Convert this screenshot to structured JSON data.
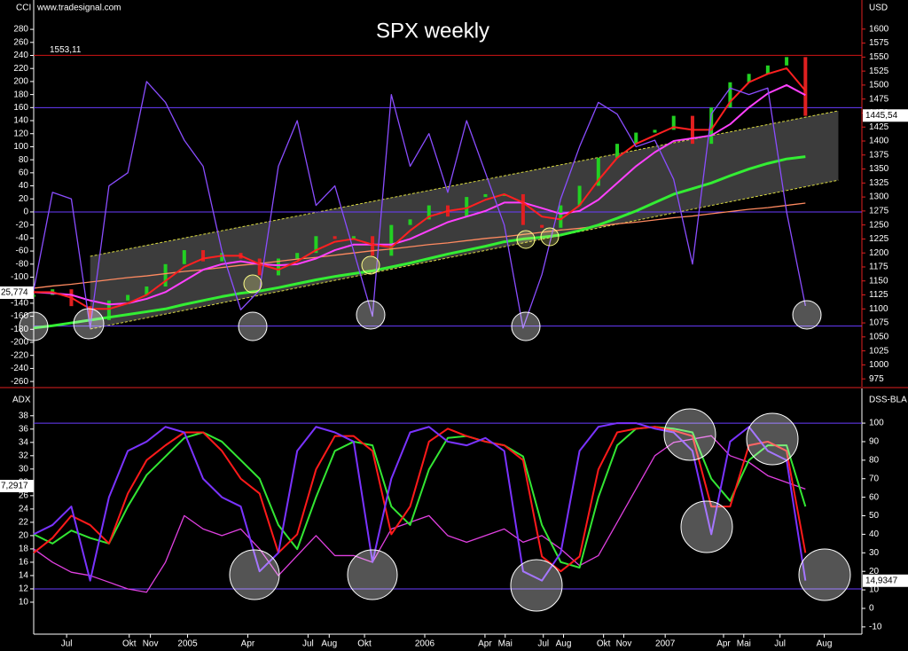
{
  "chart_data": [
    {
      "type": "line",
      "title": "SPX weekly",
      "source": "www.tradesignal.com",
      "y_label": "CCI",
      "y2_label": "USD",
      "x": [
        0,
        4,
        8,
        12,
        16,
        20,
        24,
        28,
        32,
        36,
        40,
        44,
        48,
        52,
        56,
        60,
        64,
        68,
        72,
        76,
        80,
        84,
        88,
        92,
        96,
        100,
        104,
        108,
        112,
        116,
        120,
        124,
        128,
        132,
        136,
        140,
        144,
        148,
        152,
        156,
        160,
        164
      ],
      "xlim": [
        0,
        176
      ],
      "ylim": [
        -268,
        325
      ],
      "yticks": [
        -260,
        -240,
        -220,
        -200,
        -180,
        -160,
        -140,
        -120,
        -100,
        -80,
        -60,
        -40,
        -20,
        0,
        20,
        40,
        60,
        80,
        100,
        120,
        140,
        160,
        180,
        200,
        220,
        240,
        260,
        280
      ],
      "y2lim": [
        961,
        1652
      ],
      "y2ticks": [
        975,
        1000,
        1025,
        1050,
        1075,
        1100,
        1125,
        1150,
        1175,
        1200,
        1225,
        1250,
        1275,
        1300,
        1325,
        1350,
        1375,
        1400,
        1425,
        1450,
        1475,
        1500,
        1525,
        1550,
        1575,
        1600
      ],
      "channel": {
        "x": [
          12,
          171
        ],
        "upper": [
          1194,
          1454
        ],
        "lower": [
          1064,
          1330
        ],
        "axis": "y2",
        "color": "#3c3c3c",
        "edge_color": "#d8d840"
      },
      "hlines": [
        {
          "value": 1553.11,
          "label": "1553,11",
          "axis": "y2",
          "color": "#d01414"
        },
        {
          "value": 160,
          "color": "#6a3cff"
        },
        {
          "value": 0,
          "color": "#6a3cff"
        },
        {
          "value": -175,
          "color": "#6a3cff"
        }
      ],
      "series": [
        {
          "style": "candle",
          "axis": "y2",
          "color": "#22d022",
          "down_color": "#e02020",
          "values": [
            1125,
            1135,
            1105,
            1080,
            1115,
            1125,
            1140,
            1180,
            1205,
            1185,
            1200,
            1190,
            1160,
            1190,
            1200,
            1230,
            1225,
            1230,
            1195,
            1250,
            1260,
            1285,
            1265,
            1300,
            1305,
            1305,
            1250,
            1245,
            1285,
            1320,
            1370,
            1395,
            1415,
            1420,
            1445,
            1395,
            1460,
            1505,
            1520,
            1535,
            1550,
            1445
          ]
        },
        {
          "axis": "y2",
          "color": "#ff8a60",
          "values": [
            1137,
            1141,
            1144,
            1148,
            1152,
            1156,
            1159,
            1163,
            1167,
            1170,
            1174,
            1178,
            1181,
            1185,
            1189,
            1192,
            1196,
            1200,
            1204,
            1207,
            1211,
            1215,
            1218,
            1222,
            1226,
            1229,
            1233,
            1237,
            1241,
            1244,
            1248,
            1252,
            1255,
            1259,
            1263,
            1266,
            1270,
            1274,
            1278,
            1281,
            1285,
            1289
          ]
        },
        {
          "axis": "y2",
          "color": "#33ee33",
          "width": 3,
          "values": [
            1066,
            1070,
            1075,
            1080,
            1085,
            1090,
            1095,
            1100,
            1108,
            1115,
            1122,
            1128,
            1132,
            1138,
            1145,
            1152,
            1158,
            1163,
            1168,
            1175,
            1182,
            1190,
            1198,
            1205,
            1212,
            1220,
            1225,
            1228,
            1232,
            1240,
            1250,
            1262,
            1275,
            1290,
            1305,
            1315,
            1325,
            1338,
            1350,
            1360,
            1368,
            1372
          ]
        },
        {
          "axis": "y2",
          "color": "#ff40ff",
          "width": 2,
          "values": [
            1130,
            1128,
            1125,
            1115,
            1108,
            1110,
            1118,
            1130,
            1150,
            1170,
            1180,
            1185,
            1180,
            1178,
            1180,
            1190,
            1205,
            1215,
            1215,
            1215,
            1225,
            1240,
            1255,
            1265,
            1275,
            1290,
            1290,
            1280,
            1270,
            1275,
            1295,
            1325,
            1355,
            1380,
            1400,
            1405,
            1410,
            1430,
            1460,
            1485,
            1500,
            1482
          ]
        },
        {
          "axis": "y2",
          "color": "#ff2020",
          "width": 2,
          "values": [
            1130,
            1130,
            1120,
            1100,
            1100,
            1110,
            1125,
            1150,
            1175,
            1190,
            1195,
            1195,
            1180,
            1170,
            1185,
            1205,
            1220,
            1225,
            1215,
            1210,
            1240,
            1265,
            1275,
            1280,
            1295,
            1305,
            1290,
            1265,
            1260,
            1285,
            1330,
            1370,
            1395,
            1410,
            1425,
            1420,
            1420,
            1470,
            1505,
            1520,
            1530,
            1490
          ]
        },
        {
          "color": "#8a4dff",
          "values": [
            -120,
            30,
            20,
            -178,
            40,
            60,
            200,
            168,
            110,
            70,
            -60,
            -150,
            -120,
            70,
            140,
            10,
            40,
            -60,
            -160,
            180,
            70,
            120,
            30,
            140,
            60,
            -20,
            -178,
            -96,
            20,
            100,
            168,
            150,
            100,
            110,
            50,
            -80,
            150,
            190,
            180,
            190,
            0,
            -144
          ]
        }
      ],
      "last_values": [
        {
          "value": 1445.54,
          "label": "1445,54",
          "axis": "y2"
        }
      ],
      "left_labels": [
        "25,774"
      ]
    },
    {
      "type": "line",
      "y_label": "ADX",
      "y2_label": "DSS-BLA",
      "x": [
        0,
        4,
        8,
        12,
        16,
        20,
        24,
        28,
        32,
        36,
        40,
        44,
        48,
        52,
        56,
        60,
        64,
        68,
        72,
        76,
        80,
        84,
        88,
        92,
        96,
        100,
        104,
        108,
        112,
        116,
        120,
        124,
        128,
        132,
        136,
        140,
        144,
        148,
        152,
        156,
        160,
        164
      ],
      "xlim": [
        0,
        176
      ],
      "xticks": [
        {
          "value": 7,
          "label": "Jul"
        },
        {
          "value": 20.3,
          "label": "Okt"
        },
        {
          "value": 24.8,
          "label": "Nov"
        },
        {
          "value": 32.7,
          "label": "2005"
        },
        {
          "value": 45.5,
          "label": "Apr"
        },
        {
          "value": 58.3,
          "label": "Jul"
        },
        {
          "value": 62.8,
          "label": "Aug"
        },
        {
          "value": 70.3,
          "label": "Okt"
        },
        {
          "value": 83.1,
          "label": "2006"
        },
        {
          "value": 95.9,
          "label": "Apr"
        },
        {
          "value": 100.2,
          "label": "Mai"
        },
        {
          "value": 108.3,
          "label": "Jul"
        },
        {
          "value": 112.6,
          "label": "Aug"
        },
        {
          "value": 121.1,
          "label": "Okt"
        },
        {
          "value": 125.4,
          "label": "Nov"
        },
        {
          "value": 134.2,
          "label": "2007"
        },
        {
          "value": 146.6,
          "label": "Apr"
        },
        {
          "value": 150.9,
          "label": "Mai"
        },
        {
          "value": 158.6,
          "label": "Jul"
        },
        {
          "value": 168,
          "label": "Aug"
        }
      ],
      "ylim": [
        5.2,
        42.1
      ],
      "yticks": [
        10,
        12,
        14,
        16,
        18,
        20,
        22,
        24,
        26,
        28,
        30,
        32,
        34,
        36,
        38
      ],
      "y2lim": [
        -13.9,
        118.7
      ],
      "y2ticks": [
        -10,
        0,
        10,
        20,
        30,
        40,
        50,
        60,
        70,
        80,
        90,
        100
      ],
      "hlines": [
        {
          "value": 100,
          "axis": "y2",
          "color": "#6a3cff"
        },
        {
          "value": 12,
          "color": "#6a3cff"
        }
      ],
      "series": [
        {
          "color": "#e040e0",
          "values": [
            18,
            16,
            14.5,
            14,
            13,
            12,
            11.5,
            16,
            23,
            21,
            20,
            21,
            18,
            14,
            17,
            20,
            17,
            17,
            16,
            21,
            22,
            23,
            20,
            19,
            20,
            21,
            19,
            20,
            18,
            15.5,
            17,
            22,
            27,
            32,
            34,
            34.5,
            35,
            32,
            31,
            29,
            28,
            27
          ]
        },
        {
          "axis": "y2",
          "color": "#33e633",
          "width": 2,
          "values": [
            40,
            35,
            42,
            38,
            35,
            55,
            72,
            82,
            92,
            95,
            90,
            80,
            70,
            45,
            32,
            60,
            85,
            90,
            88,
            55,
            45,
            75,
            92,
            93,
            90,
            88,
            82,
            45,
            25,
            22,
            60,
            88,
            97,
            98,
            97,
            95,
            70,
            58,
            80,
            88,
            88,
            55
          ]
        },
        {
          "axis": "y2",
          "color": "#ff1a1a",
          "width": 2,
          "values": [
            30,
            38,
            50,
            45,
            35,
            62,
            80,
            88,
            95,
            95,
            85,
            70,
            62,
            30,
            40,
            75,
            93,
            93,
            85,
            40,
            55,
            90,
            97,
            93,
            90,
            88,
            80,
            28,
            20,
            28,
            75,
            95,
            97,
            98,
            96,
            93,
            55,
            55,
            88,
            90,
            85,
            30
          ]
        },
        {
          "axis": "y2",
          "color": "#7a33ff",
          "width": 2,
          "values": [
            40,
            45,
            55,
            15,
            60,
            85,
            90,
            98,
            95,
            70,
            60,
            55,
            20,
            30,
            85,
            98,
            95,
            90,
            25,
            70,
            95,
            98,
            90,
            88,
            92,
            85,
            20,
            15,
            30,
            85,
            98,
            100,
            100,
            97,
            95,
            85,
            40,
            90,
            98,
            85,
            80,
            15
          ]
        }
      ],
      "last_values": [
        {
          "value": 14.9347,
          "label": "14,9347",
          "axis": "y2"
        }
      ],
      "left_labels": [
        "7,2917"
      ]
    }
  ]
}
